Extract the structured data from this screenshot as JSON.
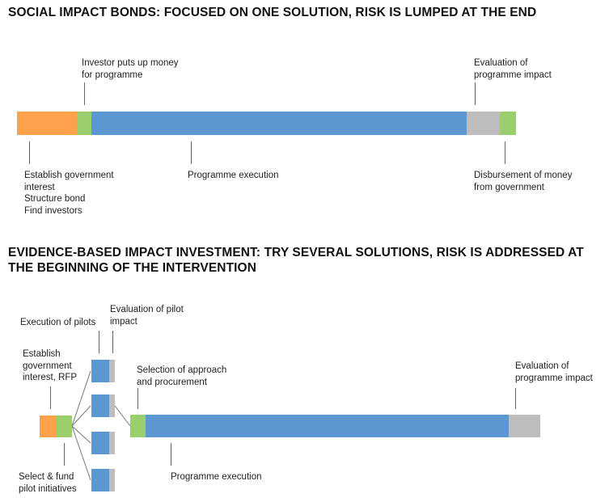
{
  "colors": {
    "orange": "#FFA04B",
    "green": "#9BCF6E",
    "blue": "#5B97D0",
    "grey": "#BDBDBD"
  },
  "top": {
    "title": "SOCIAL IMPACT BONDS: FOCUSED ON ONE SOLUTION, RISK IS LUMPED AT THE END",
    "labels": {
      "investor": "Investor puts up money\nfor programme",
      "evaluation": "Evaluation of\nprogramme impact",
      "establish": "Establish government\ninterest\nStructure bond\nFind investors",
      "execution": "Programme execution",
      "disbursement": "Disbursement of money\nfrom government"
    }
  },
  "bottom": {
    "title": "EVIDENCE-BASED IMPACT INVESTMENT: TRY SEVERAL SOLUTIONS, RISK IS ADDRESSED AT\nTHE BEGINNING OF THE INTERVENTION",
    "labels": {
      "execution_pilots": "Execution of pilots",
      "evaluation_pilot": "Evaluation of pilot\nimpact",
      "establish": "Establish\ngovernment\ninterest, RFP",
      "selection": "Selection of approach\nand procurement",
      "evaluation": "Evaluation of\nprogramme impact",
      "select_fund": "Select & fund\npilot initiatives",
      "execution": "Programme execution"
    }
  }
}
